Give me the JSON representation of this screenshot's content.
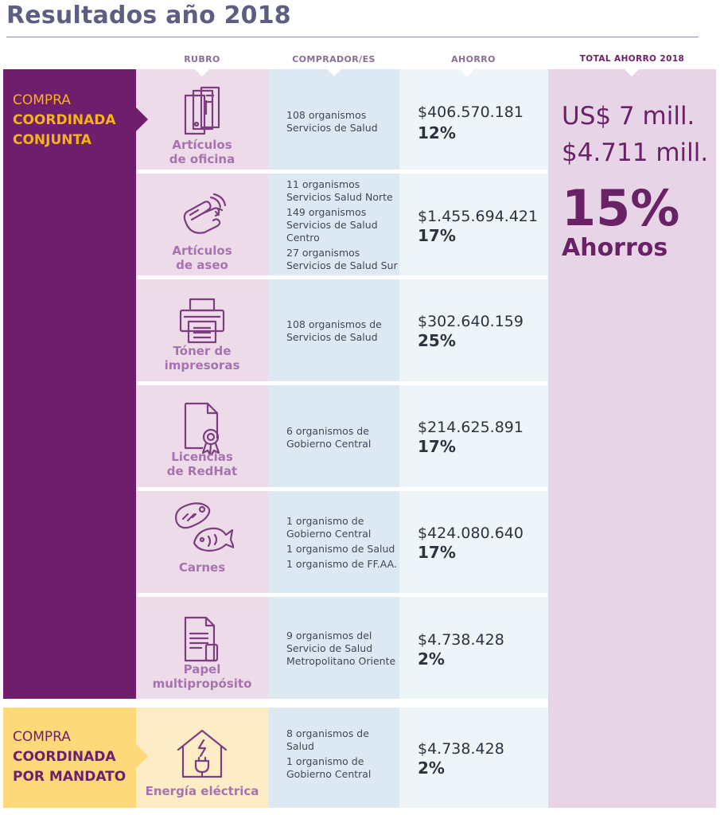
{
  "title": "Resultados año 2018",
  "columns": {
    "rubro": "RUBRO",
    "comprador": "COMPRADOR/ES",
    "ahorro": "AHORRO",
    "total": "TOTAL AHORRO 2018"
  },
  "categories": [
    {
      "line1": "COMPRA",
      "line2": "COORDINADA",
      "line3": "CONJUNTA",
      "color": "#6f1e6b",
      "accent": "#f5b21a"
    },
    {
      "line1": "COMPRA",
      "line2": "COORDINADA",
      "line3": "POR MANDATO",
      "color": "#fdd97a",
      "accent": "#6f1e6b"
    }
  ],
  "rows": [
    {
      "rubro_line1": "Artículos",
      "rubro_line2": "de oficina",
      "icon": "binder-icon",
      "compradores": [
        "108 organismos Servicios de Salud"
      ],
      "amount": "$406.570.181",
      "pct": "12%"
    },
    {
      "rubro_line1": "Artículos",
      "rubro_line2": "de aseo",
      "icon": "cleaning-hand-icon",
      "compradores": [
        "11 organismos Servicios Salud Norte",
        "149 organismos Servicios de Salud Centro",
        "27 organismos Servicios de Salud Sur"
      ],
      "amount": "$1.455.694.421",
      "pct": "17%"
    },
    {
      "rubro_line1": "Tóner de",
      "rubro_line2": "impresoras",
      "icon": "printer-icon",
      "compradores": [
        "108 organismos de Servicios de Salud"
      ],
      "amount": "$302.640.159",
      "pct": "25%"
    },
    {
      "rubro_line1": "Licencias",
      "rubro_line2": "de RedHat",
      "icon": "certificate-icon",
      "compradores": [
        "6 organismos de Gobierno Central"
      ],
      "amount": "$214.625.891",
      "pct": "17%"
    },
    {
      "rubro_line1": "Carnes",
      "rubro_line2": "",
      "icon": "meat-fish-icon",
      "compradores": [
        "1 organismo de Gobierno Central",
        "1 organismo de Salud",
        "1 organismo de FF.AA."
      ],
      "amount": "$424.080.640",
      "pct": "17%"
    },
    {
      "rubro_line1": "Papel",
      "rubro_line2": "multipropósito",
      "icon": "paper-icon",
      "compradores": [
        "9 organismos del Servicio de Salud Metropolitano Oriente"
      ],
      "amount": "$4.738.428",
      "pct": "2%"
    },
    {
      "rubro_line1": "Energía eléctrica",
      "rubro_line2": "",
      "icon": "house-plug-icon",
      "compradores": [
        "8 organismos de Salud",
        "1 organismo de Gobierno Central"
      ],
      "amount": "$4.738.428",
      "pct": "2%"
    }
  ],
  "total": {
    "usd": "US$ 7 mill.",
    "clp": "$4.711 mill.",
    "pct": "15%",
    "label": "Ahorros"
  }
}
